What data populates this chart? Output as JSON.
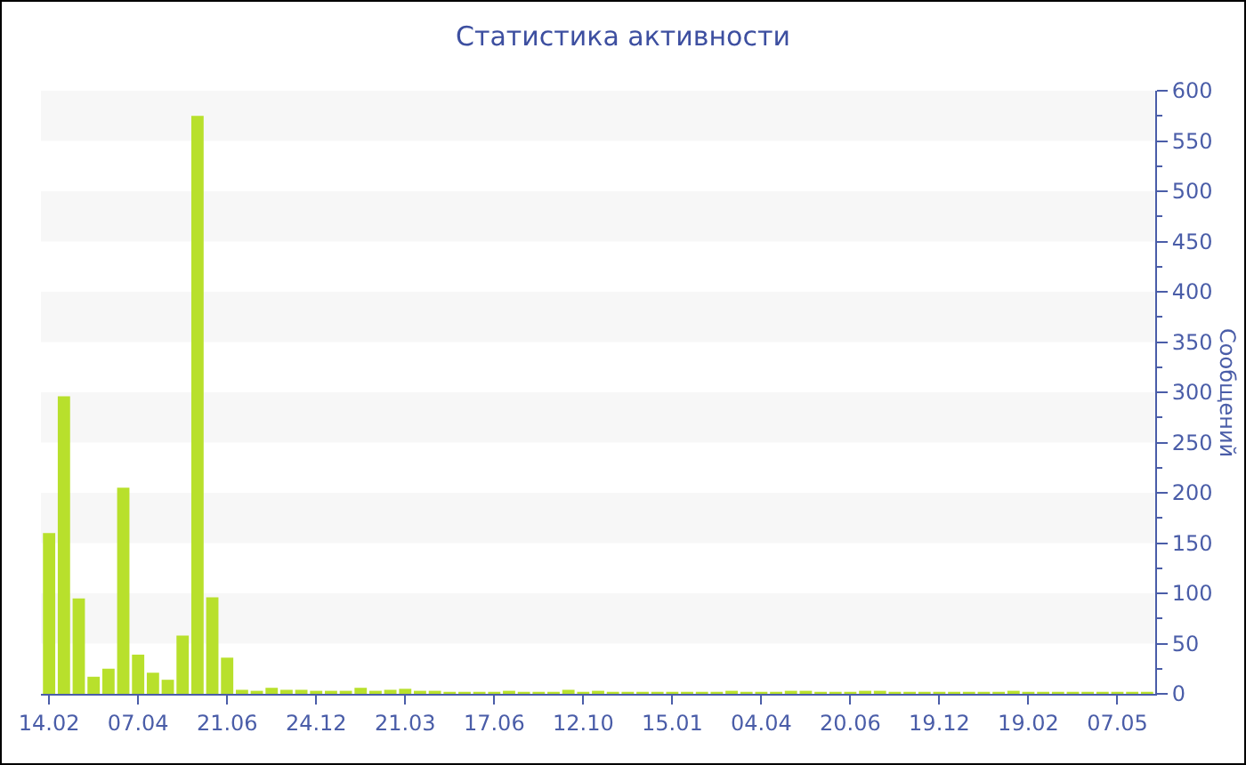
{
  "chart_data": {
    "type": "bar",
    "title": "Статистика активности",
    "ylabel": "Сообщений",
    "categories": [
      "14.02",
      null,
      null,
      null,
      null,
      null,
      "07.04",
      null,
      null,
      null,
      null,
      null,
      "21.06",
      null,
      null,
      null,
      null,
      null,
      "24.12",
      null,
      null,
      null,
      null,
      null,
      "21.03",
      null,
      null,
      null,
      null,
      null,
      "17.06",
      null,
      null,
      null,
      null,
      null,
      "12.10",
      null,
      null,
      null,
      null,
      null,
      "15.01",
      null,
      null,
      null,
      null,
      null,
      "04.04",
      null,
      null,
      null,
      null,
      null,
      "20.06",
      null,
      null,
      null,
      null,
      null,
      "19.12",
      null,
      null,
      null,
      null,
      null,
      "19.02",
      null,
      null,
      null,
      null,
      null,
      "07.05",
      null,
      null
    ],
    "values": [
      160,
      296,
      95,
      17,
      25,
      205,
      39,
      21,
      14,
      58,
      575,
      96,
      36,
      4,
      3,
      6,
      4,
      4,
      3,
      3,
      3,
      6,
      3,
      4,
      5,
      3,
      3,
      2,
      2,
      2,
      2,
      3,
      2,
      2,
      2,
      4,
      2,
      3,
      2,
      2,
      2,
      2,
      2,
      2,
      2,
      2,
      3,
      2,
      2,
      2,
      3,
      3,
      2,
      2,
      2,
      3,
      3,
      2,
      2,
      2,
      2,
      2,
      2,
      2,
      2,
      3,
      2,
      2,
      2,
      2,
      2,
      2,
      2,
      2,
      2
    ],
    "color": "#b8e02c",
    "ylim": [
      0,
      600
    ],
    "yticks": [
      0,
      {
        "value": 25,
        "label": null
      },
      50,
      {
        "value": 75,
        "label": null
      },
      100,
      {
        "value": 125,
        "label": null
      },
      150,
      {
        "value": 175,
        "label": null
      },
      200,
      {
        "value": 225,
        "label": null
      },
      250,
      {
        "value": 275,
        "label": null
      },
      300,
      {
        "value": 325,
        "label": null
      },
      350,
      {
        "value": 375,
        "label": null
      },
      400,
      {
        "value": 425,
        "label": null
      },
      450,
      {
        "value": 475,
        "label": null
      },
      500,
      {
        "value": 525,
        "label": null
      },
      550,
      {
        "value": 575,
        "label": null
      },
      600
    ],
    "bands": [
      {
        "axis": "y",
        "from": 50,
        "to": 100,
        "color": "#f7f7f7"
      },
      {
        "axis": "y",
        "from": 150,
        "to": 200,
        "color": "#f7f7f7"
      },
      {
        "axis": "y",
        "from": 250,
        "to": 300,
        "color": "#f7f7f7"
      },
      {
        "axis": "y",
        "from": 350,
        "to": 400,
        "color": "#f7f7f7"
      },
      {
        "axis": "y",
        "from": 450,
        "to": 500,
        "color": "#f7f7f7"
      },
      {
        "axis": "y",
        "from": 550,
        "to": 600,
        "color": "#f7f7f7"
      }
    ]
  }
}
